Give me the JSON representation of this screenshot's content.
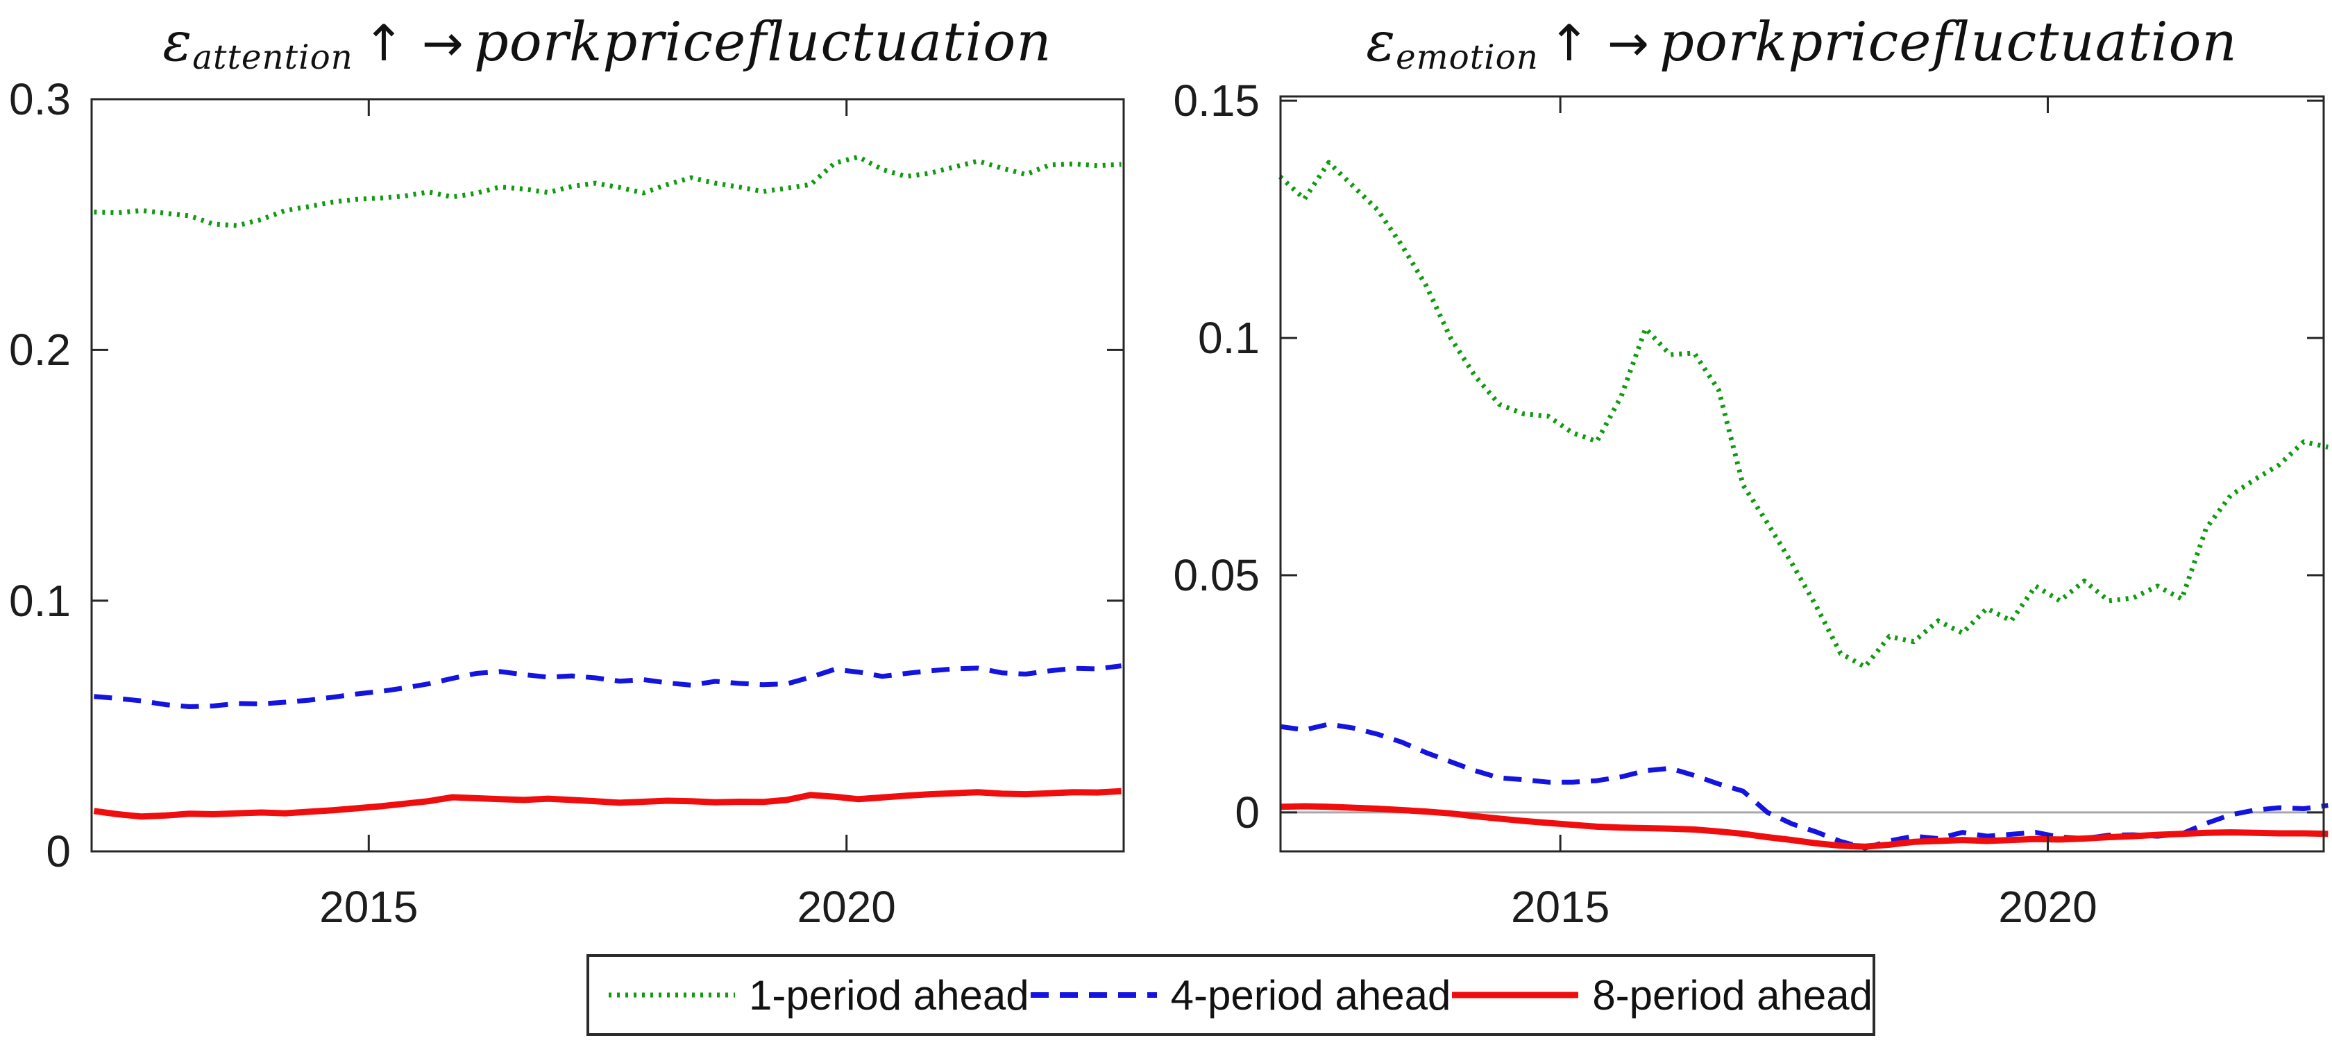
{
  "figure": {
    "background": "#ffffff",
    "axis_color": "#262626",
    "tick_label_color": "#1c1c1c",
    "zero_line_color": "#a8a8a8"
  },
  "legend": {
    "items": [
      {
        "label": "1-period ahead",
        "color": "#0f9b0f",
        "dash": "4 8",
        "line_width": 7
      },
      {
        "label": "4-period ahead",
        "color": "#1414e0",
        "dash": "26 16",
        "line_width": 8
      },
      {
        "label": "8-period ahead",
        "color": "#ef0d0d",
        "dash": "",
        "line_width": 9
      }
    ]
  },
  "chart_data": [
    {
      "type": "line",
      "title_parts": {
        "symbol": "ε",
        "subscript": "attention",
        "arrows": "↑ →",
        "rest": "porkpricefluctuation"
      },
      "xlabel": "",
      "ylabel": "",
      "xlim": [
        2012.1,
        2022.9
      ],
      "ylim": [
        0,
        0.3
      ],
      "yticks": {
        "values": [
          0,
          0.1,
          0.2,
          0.3
        ],
        "labels": [
          "0",
          "0.1",
          "0.2",
          "0.3"
        ]
      },
      "xticks": {
        "values": [
          2015,
          2020
        ],
        "labels": [
          "2015",
          "2020"
        ]
      },
      "zero_line": false,
      "grid": false,
      "x": [
        2012.125,
        2012.375,
        2012.625,
        2012.875,
        2013.125,
        2013.375,
        2013.625,
        2013.875,
        2014.125,
        2014.375,
        2014.625,
        2014.875,
        2015.125,
        2015.375,
        2015.625,
        2015.875,
        2016.125,
        2016.375,
        2016.625,
        2016.875,
        2017.125,
        2017.375,
        2017.625,
        2017.875,
        2018.125,
        2018.375,
        2018.625,
        2018.875,
        2019.125,
        2019.375,
        2019.625,
        2019.875,
        2020.125,
        2020.375,
        2020.625,
        2020.875,
        2021.125,
        2021.375,
        2021.625,
        2021.875,
        2022.125,
        2022.375,
        2022.625,
        2022.875
      ],
      "series": [
        {
          "name": "1-period ahead",
          "style": "dotted",
          "color": "#0f9b0f",
          "line_width": 7,
          "values": [
            0.255,
            0.2547,
            0.2556,
            0.2545,
            0.2535,
            0.2502,
            0.2496,
            0.252,
            0.2556,
            0.2572,
            0.259,
            0.2601,
            0.2606,
            0.2614,
            0.263,
            0.261,
            0.2625,
            0.265,
            0.2642,
            0.2628,
            0.2652,
            0.2665,
            0.2648,
            0.2626,
            0.266,
            0.2687,
            0.2665,
            0.265,
            0.2632,
            0.2645,
            0.266,
            0.2745,
            0.277,
            0.272,
            0.2692,
            0.2705,
            0.273,
            0.2753,
            0.2725,
            0.27,
            0.2738,
            0.2742,
            0.2735,
            0.274
          ]
        },
        {
          "name": "4-period ahead",
          "style": "dashed",
          "color": "#1414e0",
          "line_width": 7,
          "values": [
            0.0618,
            0.061,
            0.06,
            0.0585,
            0.0577,
            0.058,
            0.059,
            0.0588,
            0.0595,
            0.0603,
            0.0615,
            0.0628,
            0.0638,
            0.0652,
            0.0668,
            0.069,
            0.071,
            0.0717,
            0.0705,
            0.0695,
            0.07,
            0.0692,
            0.0679,
            0.0685,
            0.0672,
            0.0663,
            0.0678,
            0.067,
            0.0665,
            0.0668,
            0.0695,
            0.0726,
            0.0715,
            0.0698,
            0.071,
            0.072,
            0.0728,
            0.0731,
            0.0712,
            0.0707,
            0.072,
            0.073,
            0.0728,
            0.074
          ]
        },
        {
          "name": "8-period ahead",
          "style": "solid",
          "color": "#ef0d0d",
          "line_width": 9,
          "values": [
            0.0161,
            0.0148,
            0.0139,
            0.0143,
            0.015,
            0.0148,
            0.0152,
            0.0155,
            0.0152,
            0.0158,
            0.0164,
            0.0172,
            0.018,
            0.019,
            0.02,
            0.0216,
            0.0212,
            0.0208,
            0.0205,
            0.021,
            0.0205,
            0.02,
            0.0194,
            0.0198,
            0.0202,
            0.02,
            0.0196,
            0.0198,
            0.0197,
            0.0205,
            0.0225,
            0.0218,
            0.0208,
            0.0215,
            0.0222,
            0.0228,
            0.0232,
            0.0236,
            0.023,
            0.0228,
            0.0232,
            0.0236,
            0.0235,
            0.024
          ]
        }
      ]
    },
    {
      "type": "line",
      "title_parts": {
        "symbol": "ε",
        "subscript": "emotion",
        "arrows": "↑ →",
        "rest": "porkpricefluctuation"
      },
      "xlabel": "",
      "ylabel": "",
      "xlim": [
        2012.13,
        2022.83
      ],
      "ylim": [
        -0.0082,
        0.1509
      ],
      "yticks": {
        "values": [
          0,
          0.05,
          0.1,
          0.15
        ],
        "labels": [
          "0",
          "0.05",
          "0.1",
          "0.15"
        ]
      },
      "xticks": {
        "values": [
          2015,
          2020
        ],
        "labels": [
          "2015",
          "2020"
        ]
      },
      "zero_line": true,
      "grid": false,
      "x": [
        2012.125,
        2012.375,
        2012.625,
        2012.875,
        2013.125,
        2013.375,
        2013.625,
        2013.875,
        2014.125,
        2014.375,
        2014.625,
        2014.875,
        2015.125,
        2015.375,
        2015.625,
        2015.875,
        2016.125,
        2016.375,
        2016.625,
        2016.875,
        2017.125,
        2017.375,
        2017.625,
        2017.875,
        2018.125,
        2018.375,
        2018.625,
        2018.875,
        2019.125,
        2019.375,
        2019.625,
        2019.875,
        2020.125,
        2020.375,
        2020.625,
        2020.875,
        2021.125,
        2021.375,
        2021.625,
        2021.875,
        2022.125,
        2022.375,
        2022.625,
        2022.875
      ],
      "series": [
        {
          "name": "1-period ahead",
          "style": "dotted",
          "color": "#0f9b0f",
          "line_width": 7,
          "values": [
            0.134,
            0.1293,
            0.137,
            0.132,
            0.127,
            0.1195,
            0.111,
            0.1,
            0.092,
            0.086,
            0.084,
            0.0835,
            0.08,
            0.0782,
            0.0877,
            0.102,
            0.0965,
            0.0968,
            0.089,
            0.069,
            0.061,
            0.0525,
            0.0435,
            0.0335,
            0.0307,
            0.0371,
            0.036,
            0.0404,
            0.0378,
            0.043,
            0.0404,
            0.0477,
            0.0446,
            0.0488,
            0.0446,
            0.0452,
            0.0477,
            0.045,
            0.0599,
            0.0668,
            0.0702,
            0.0733,
            0.0781,
            0.077
          ]
        },
        {
          "name": "4-period ahead",
          "style": "dashed",
          "color": "#1414e0",
          "line_width": 7,
          "values": [
            0.0181,
            0.0174,
            0.0186,
            0.0178,
            0.0165,
            0.0148,
            0.0126,
            0.0107,
            0.0088,
            0.0073,
            0.0069,
            0.0064,
            0.0064,
            0.0067,
            0.0075,
            0.0088,
            0.0093,
            0.0078,
            0.006,
            0.0045,
            0.0,
            -0.0024,
            -0.0041,
            -0.0061,
            -0.0075,
            -0.006,
            -0.005,
            -0.0055,
            -0.0042,
            -0.005,
            -0.0046,
            -0.0042,
            -0.0052,
            -0.0055,
            -0.0048,
            -0.0047,
            -0.005,
            -0.0045,
            -0.0023,
            -0.0005,
            0.0005,
            0.001,
            0.0008,
            0.0015
          ]
        },
        {
          "name": "8-period ahead",
          "style": "solid",
          "color": "#ef0d0d",
          "line_width": 9,
          "values": [
            0.0012,
            0.0013,
            0.0012,
            0.001,
            0.0008,
            0.0005,
            0.0002,
            -0.0002,
            -0.0008,
            -0.0013,
            -0.0018,
            -0.0022,
            -0.0026,
            -0.003,
            -0.0032,
            -0.0033,
            -0.0034,
            -0.0036,
            -0.004,
            -0.0045,
            -0.0052,
            -0.0058,
            -0.0065,
            -0.007,
            -0.0072,
            -0.0068,
            -0.0062,
            -0.006,
            -0.0058,
            -0.006,
            -0.0058,
            -0.0056,
            -0.0057,
            -0.0055,
            -0.0052,
            -0.005,
            -0.0047,
            -0.0045,
            -0.0043,
            -0.0042,
            -0.0043,
            -0.0044,
            -0.0044,
            -0.0045
          ]
        }
      ]
    }
  ]
}
